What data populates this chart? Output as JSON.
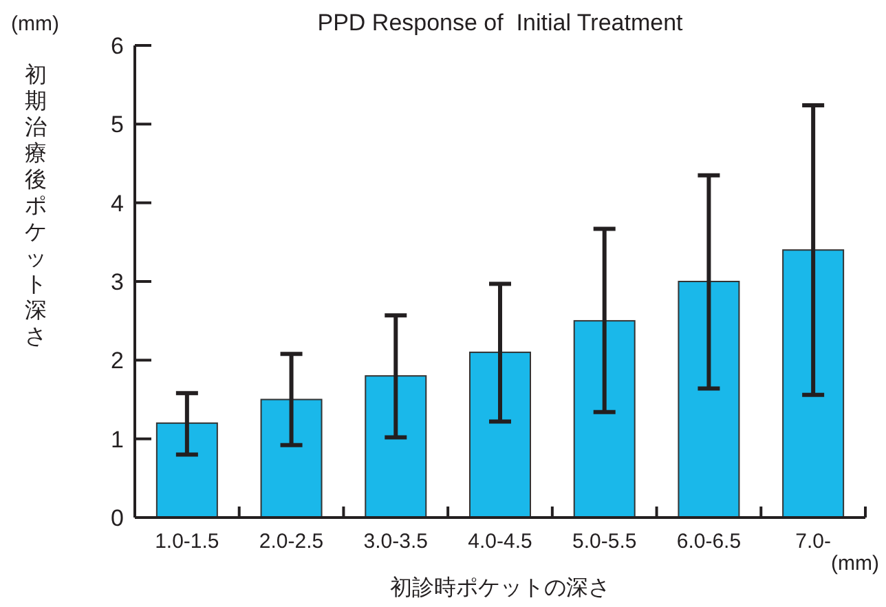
{
  "chart_data": {
    "type": "bar",
    "title": "PPD Response of  Initial Treatment",
    "xlabel": "初診時ポケットの深さ",
    "ylabel": "初期治療後ポケット深さ",
    "annotations": [
      "(mm)",
      "(mm)"
    ],
    "categories": [
      "1.0-1.5",
      "2.0-2.5",
      "3.0-3.5",
      "4.0-4.5",
      "5.0-5.5",
      "6.0-6.5",
      "7.0-"
    ],
    "values": [
      1.2,
      1.5,
      1.8,
      2.1,
      2.5,
      3.0,
      3.4
    ],
    "errors": [
      [
        0.8,
        1.58
      ],
      [
        0.92,
        2.08
      ],
      [
        1.02,
        2.57
      ],
      [
        1.22,
        2.97
      ],
      [
        1.34,
        3.67
      ],
      [
        1.64,
        4.35
      ],
      [
        1.56,
        5.24
      ]
    ],
    "color": "#1ab8ea",
    "ylim": [
      0,
      6
    ],
    "yticks": [
      0,
      1,
      2,
      3,
      4,
      5,
      6
    ],
    "grid": false
  }
}
